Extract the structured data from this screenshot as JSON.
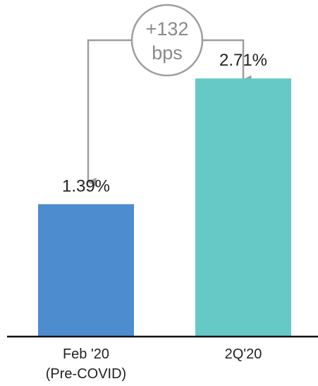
{
  "chart_data": {
    "type": "bar",
    "categories": [
      "Feb '20\n(Pre-COVID)",
      "2Q'20"
    ],
    "values": [
      1.39,
      2.71
    ],
    "data_labels": [
      "1.39%",
      "2.71%"
    ],
    "colors": [
      "#4d8ccf",
      "#66c9c6"
    ],
    "ylim": [
      0,
      3.0
    ],
    "grid": false,
    "legend": "none",
    "annotation": {
      "line1": "+132",
      "line2": "bps",
      "color": "#9e9e9e"
    }
  }
}
